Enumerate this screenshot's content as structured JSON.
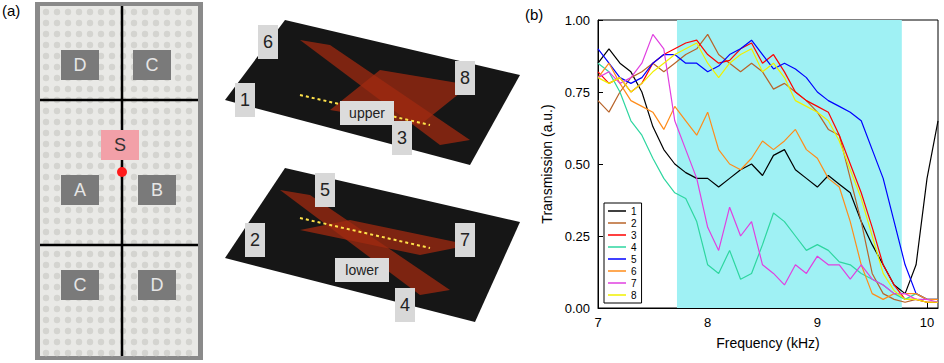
{
  "panel_a": {
    "label": "(a)",
    "photo_regions": [
      "D",
      "C",
      "S",
      "A",
      "B",
      "C",
      "D"
    ],
    "upper_diagram": {
      "label": "upper",
      "ports": [
        "6",
        "1",
        "8",
        "3"
      ]
    },
    "lower_diagram": {
      "label": "lower",
      "ports": [
        "5",
        "2",
        "7",
        "4"
      ]
    }
  },
  "chart_data": {
    "type": "line",
    "title": "(b)",
    "x_label": "Frequency (kHz)",
    "y_label": "Transmission (a.u.)",
    "x": [
      7.0,
      7.1,
      7.2,
      7.3,
      7.4,
      7.5,
      7.6,
      7.7,
      7.8,
      7.9,
      8.0,
      8.1,
      8.2,
      8.3,
      8.4,
      8.5,
      8.6,
      8.7,
      8.8,
      8.9,
      9.0,
      9.1,
      9.2,
      9.3,
      9.4,
      9.5,
      9.6,
      9.7,
      9.8,
      9.9,
      10.0,
      10.1
    ],
    "xlim": [
      7,
      10.1
    ],
    "xticks": [
      7,
      8,
      9,
      10
    ],
    "ylim": [
      0,
      1
    ],
    "yticks": [
      {
        "value": 0,
        "label": "0.00"
      },
      {
        "value": 0.25,
        "label": "0.25"
      },
      {
        "value": 0.5,
        "label": "0.50"
      },
      {
        "value": 0.75,
        "label": "0.75"
      },
      {
        "value": 1,
        "label": "1.00"
      }
    ],
    "highlight_band": [
      7.72,
      9.77
    ],
    "highlight_color": "#9ff1f4",
    "legend": "lower left",
    "grid": false,
    "series": [
      {
        "name": "1",
        "color": "#000000",
        "values": [
          0.85,
          0.9,
          0.85,
          0.82,
          0.75,
          0.63,
          0.55,
          0.5,
          0.47,
          0.45,
          0.45,
          0.42,
          0.45,
          0.48,
          0.5,
          0.46,
          0.53,
          0.55,
          0.48,
          0.45,
          0.42,
          0.46,
          0.43,
          0.4,
          0.3,
          0.22,
          0.15,
          0.08,
          0.05,
          0.15,
          0.45,
          0.65
        ]
      },
      {
        "name": "2",
        "color": "#b8642a",
        "values": [
          0.72,
          0.68,
          0.75,
          0.8,
          0.82,
          0.85,
          0.82,
          0.85,
          0.88,
          0.9,
          0.95,
          0.88,
          0.85,
          0.82,
          0.85,
          0.82,
          0.76,
          0.78,
          0.75,
          0.72,
          0.68,
          0.62,
          0.6,
          0.45,
          0.3,
          0.12,
          0.05,
          0.03,
          0.02,
          0.03,
          0.02,
          0.02
        ]
      },
      {
        "name": "3",
        "color": "#ff0000",
        "values": [
          0.82,
          0.78,
          0.8,
          0.75,
          0.78,
          0.85,
          0.88,
          0.9,
          0.92,
          0.93,
          0.88,
          0.85,
          0.86,
          0.9,
          0.92,
          0.85,
          0.88,
          0.82,
          0.75,
          0.72,
          0.7,
          0.68,
          0.6,
          0.5,
          0.4,
          0.28,
          0.15,
          0.08,
          0.03,
          0.03,
          0.02,
          0.02
        ]
      },
      {
        "name": "4",
        "color": "#2ed6a0",
        "values": [
          0.85,
          0.82,
          0.75,
          0.65,
          0.6,
          0.52,
          0.45,
          0.4,
          0.38,
          0.3,
          0.15,
          0.12,
          0.2,
          0.1,
          0.12,
          0.22,
          0.33,
          0.3,
          0.25,
          0.2,
          0.22,
          0.2,
          0.16,
          0.15,
          0.12,
          0.1,
          0.08,
          0.05,
          0.03,
          0.05,
          0.03,
          0.03
        ]
      },
      {
        "name": "5",
        "color": "#0000ff",
        "values": [
          0.9,
          0.85,
          0.8,
          0.78,
          0.8,
          0.85,
          0.88,
          0.88,
          0.85,
          0.85,
          0.82,
          0.84,
          0.88,
          0.9,
          0.93,
          0.88,
          0.83,
          0.85,
          0.83,
          0.8,
          0.75,
          0.72,
          0.7,
          0.68,
          0.65,
          0.55,
          0.45,
          0.3,
          0.15,
          0.05,
          0.03,
          0.03
        ]
      },
      {
        "name": "6",
        "color": "#ff8c1a",
        "values": [
          0.8,
          0.85,
          0.78,
          0.72,
          0.7,
          0.68,
          0.62,
          0.7,
          0.65,
          0.6,
          0.68,
          0.55,
          0.5,
          0.48,
          0.52,
          0.58,
          0.55,
          0.58,
          0.62,
          0.55,
          0.52,
          0.45,
          0.42,
          0.3,
          0.15,
          0.05,
          0.03,
          0.05,
          0.05,
          0.05,
          0.03,
          0.03
        ]
      },
      {
        "name": "7",
        "color": "#e040e0",
        "values": [
          0.8,
          0.82,
          0.78,
          0.8,
          0.85,
          0.95,
          0.9,
          0.65,
          0.55,
          0.45,
          0.28,
          0.2,
          0.35,
          0.25,
          0.3,
          0.15,
          0.12,
          0.08,
          0.15,
          0.12,
          0.18,
          0.15,
          0.15,
          0.1,
          0.15,
          0.1,
          0.08,
          0.05,
          0.05,
          0.03,
          0.03,
          0.02
        ]
      },
      {
        "name": "8",
        "color": "#f0f000",
        "values": [
          0.8,
          0.78,
          0.8,
          0.75,
          0.78,
          0.82,
          0.85,
          0.88,
          0.9,
          0.92,
          0.85,
          0.8,
          0.85,
          0.88,
          0.9,
          0.82,
          0.85,
          0.8,
          0.72,
          0.7,
          0.68,
          0.65,
          0.58,
          0.48,
          0.38,
          0.25,
          0.12,
          0.06,
          0.03,
          0.03,
          0.02,
          0.02
        ]
      }
    ]
  }
}
